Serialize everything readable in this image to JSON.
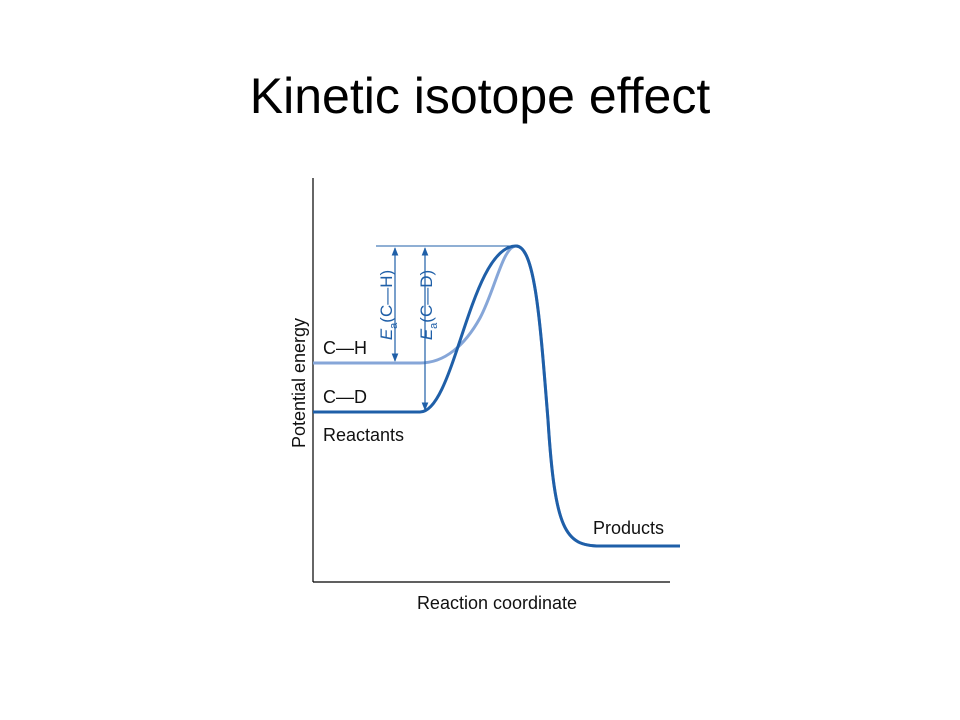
{
  "title": "Kinetic isotope effect",
  "diagram": {
    "y_axis_label": "Potential energy",
    "x_axis_label": "Reaction coordinate",
    "curve_labels": {
      "ch": "C—H",
      "cd": "C—D",
      "reactants": "Reactants",
      "products": "Products"
    },
    "annotations": [
      {
        "symbol": "E",
        "subscript": "a",
        "bond": "(C—H)"
      },
      {
        "symbol": "E",
        "subscript": "a",
        "bond": "(C—D)"
      }
    ]
  }
}
